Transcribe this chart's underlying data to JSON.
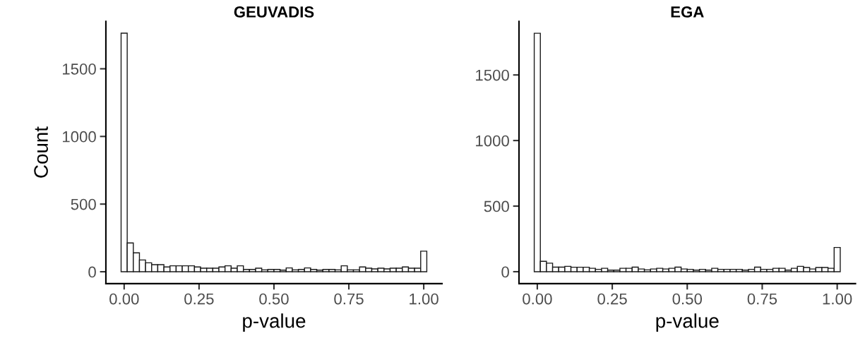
{
  "chart_data": [
    {
      "type": "histogram",
      "title": "GEUVADIS",
      "xlabel": "p-value",
      "ylabel": "Count",
      "color": "#ffffff",
      "bins": [
        -0.0102,
        0.0102,
        0.0306,
        0.051,
        0.0714,
        0.0918,
        0.1122,
        0.1327,
        0.1531,
        0.1735,
        0.1939,
        0.2143,
        0.2347,
        0.2551,
        0.2755,
        0.2959,
        0.3163,
        0.3367,
        0.3571,
        0.3776,
        0.398,
        0.4184,
        0.4388,
        0.4592,
        0.4796,
        0.5,
        0.5204,
        0.5408,
        0.5612,
        0.5816,
        0.602,
        0.6224,
        0.6429,
        0.6633,
        0.6837,
        0.7041,
        0.7245,
        0.7449,
        0.7653,
        0.7857,
        0.8061,
        0.8265,
        0.8469,
        0.8673,
        0.8878,
        0.9082,
        0.9286,
        0.949,
        0.9694,
        0.9898,
        1.0102
      ],
      "values": [
        1763,
        213,
        140,
        87,
        66,
        52,
        52,
        35,
        44,
        44,
        44,
        44,
        35,
        26,
        26,
        26,
        35,
        44,
        26,
        44,
        17,
        17,
        26,
        14,
        17,
        17,
        12,
        28,
        14,
        17,
        28,
        17,
        12,
        17,
        17,
        14,
        44,
        14,
        14,
        35,
        26,
        21,
        26,
        21,
        26,
        26,
        35,
        26,
        26,
        152
      ],
      "xlim": [
        -0.061,
        1.061
      ],
      "xticks": [
        {
          "value": 0,
          "label": "0.00"
        },
        {
          "value": 0.25,
          "label": "0.25"
        },
        {
          "value": 0.5,
          "label": "0.50"
        },
        {
          "value": 0.75,
          "label": "0.75"
        },
        {
          "value": 1,
          "label": "1.00"
        }
      ],
      "ylim": [
        -88,
        1851
      ],
      "yticks": [
        0,
        500,
        1000,
        1500
      ]
    },
    {
      "type": "histogram",
      "title": "EGA",
      "xlabel": "p-value",
      "color": "#ffffff",
      "bins": [
        -0.0102,
        0.0102,
        0.0306,
        0.051,
        0.0714,
        0.0918,
        0.1122,
        0.1327,
        0.1531,
        0.1735,
        0.1939,
        0.2143,
        0.2347,
        0.2551,
        0.2755,
        0.2959,
        0.3163,
        0.3367,
        0.3571,
        0.3776,
        0.398,
        0.4184,
        0.4388,
        0.4592,
        0.4796,
        0.5,
        0.5204,
        0.5408,
        0.5612,
        0.5816,
        0.602,
        0.6224,
        0.6429,
        0.6633,
        0.6837,
        0.7041,
        0.7245,
        0.7449,
        0.7653,
        0.7857,
        0.8061,
        0.8265,
        0.8469,
        0.8673,
        0.8878,
        0.9082,
        0.9286,
        0.949,
        0.9694,
        0.9898,
        1.0102
      ],
      "values": [
        1818,
        79,
        65,
        35,
        35,
        41,
        34,
        34,
        34,
        26,
        18,
        26,
        12,
        12,
        26,
        26,
        35,
        21,
        14,
        21,
        26,
        21,
        26,
        35,
        21,
        18,
        12,
        18,
        12,
        26,
        18,
        18,
        18,
        18,
        12,
        18,
        35,
        18,
        18,
        26,
        26,
        12,
        26,
        41,
        32,
        21,
        32,
        32,
        26,
        185
      ],
      "xlim": [
        -0.061,
        1.061
      ],
      "xticks": [
        {
          "value": 0,
          "label": "0.00"
        },
        {
          "value": 0.25,
          "label": "0.25"
        },
        {
          "value": 0.5,
          "label": "0.50"
        },
        {
          "value": 0.75,
          "label": "0.75"
        },
        {
          "value": 1,
          "label": "1.00"
        }
      ],
      "ylim": [
        -91,
        1909
      ],
      "yticks": [
        0,
        500,
        1000,
        1500
      ]
    }
  ]
}
